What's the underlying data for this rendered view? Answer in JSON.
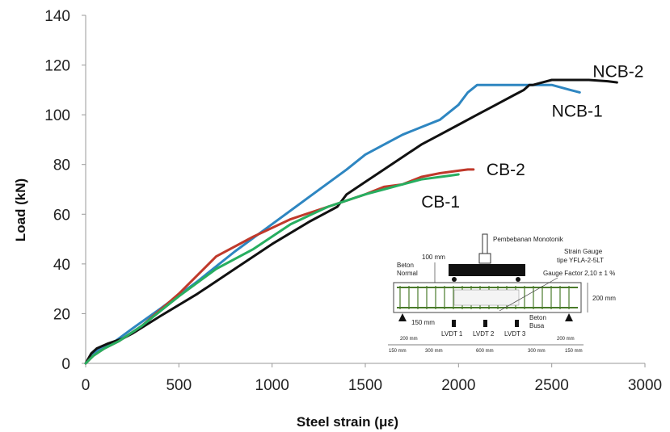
{
  "chart_data": {
    "type": "line",
    "xlabel": "Steel strain (με)",
    "ylabel": "Load (kN)",
    "xlim": [
      0,
      3000
    ],
    "ylim": [
      0,
      140
    ],
    "xticks": [
      0,
      500,
      1000,
      1500,
      2000,
      2500,
      3000
    ],
    "yticks": [
      0,
      20,
      40,
      60,
      80,
      100,
      120,
      140
    ],
    "grid": false,
    "legend": "none",
    "series": [
      {
        "name": "NCB-1",
        "color": "#2e86c1",
        "x": [
          0,
          40,
          100,
          160,
          250,
          400,
          600,
          800,
          1000,
          1200,
          1400,
          1500,
          1600,
          1700,
          1800,
          1900,
          1950,
          2000,
          2050,
          2100,
          2200,
          2300,
          2400,
          2500,
          2550,
          2600,
          2650
        ],
        "y": [
          0,
          4,
          7,
          9,
          14,
          22,
          33,
          45,
          56,
          67,
          78,
          84,
          88,
          92,
          95,
          98,
          101,
          104,
          109,
          112,
          112,
          112,
          112,
          112,
          111,
          110,
          109
        ]
      },
      {
        "name": "NCB-2",
        "color": "#111111",
        "x": [
          0,
          30,
          60,
          120,
          200,
          250,
          400,
          600,
          800,
          1000,
          1200,
          1300,
          1350,
          1400,
          1500,
          1600,
          1700,
          1800,
          1900,
          2000,
          2100,
          2200,
          2300,
          2350,
          2380,
          2400,
          2450,
          2500,
          2600,
          2700,
          2800,
          2850
        ],
        "y": [
          0,
          4,
          6,
          8,
          10,
          12,
          19,
          28,
          38,
          48,
          57,
          61,
          63,
          68,
          73,
          78,
          83,
          88,
          92,
          96,
          100,
          104,
          108,
          110,
          112,
          112,
          113,
          114,
          114,
          114,
          113.5,
          113
        ]
      },
      {
        "name": "CB-2",
        "color": "#c0392b",
        "x": [
          0,
          40,
          100,
          180,
          300,
          500,
          700,
          900,
          1100,
          1300,
          1500,
          1600,
          1700,
          1800,
          1900,
          2000,
          2050,
          2080
        ],
        "y": [
          0,
          3,
          6,
          9,
          15,
          28,
          43,
          51,
          58,
          63,
          68,
          71,
          72,
          75,
          76.5,
          77.5,
          78,
          78
        ]
      },
      {
        "name": "CB-1",
        "color": "#27ae60",
        "x": [
          0,
          40,
          100,
          180,
          300,
          500,
          700,
          900,
          1100,
          1300,
          1500,
          1600,
          1700,
          1800,
          1900,
          1950,
          2000
        ],
        "y": [
          0,
          3,
          6,
          9,
          15,
          27,
          38,
          46,
          56,
          63,
          68,
          70,
          72,
          74,
          75,
          75.5,
          76
        ]
      }
    ],
    "series_labels": [
      {
        "text": "NCB-2",
        "x": 2720,
        "y": 117.5
      },
      {
        "text": "NCB-1",
        "x": 2500,
        "y": 101.5
      },
      {
        "text": "CB-2",
        "x": 2150,
        "y": 78
      },
      {
        "text": "CB-1",
        "x": 1800,
        "y": 65
      }
    ]
  },
  "inset": {
    "loading": "Pembebanan Monotonik",
    "strain_gauge_line1": "Strain Gauge",
    "strain_gauge_line2": "tipe YFLA-2-5LT",
    "gauge_factor": "Gauge Factor 2,10 ± 1 %",
    "dim_100": "100 mm",
    "beton_normal_1": "Beton",
    "beton_normal_2": "Normal",
    "beton_busa_1": "Beton",
    "beton_busa_2": "Busa",
    "dim_200_right": "200 mm",
    "dim_150": "150 mm",
    "lvdt1": "LVDT 1",
    "lvdt2": "LVDT 2",
    "lvdt3": "LVDT 3",
    "dim_200_left_bottom": "200 mm",
    "dim_200_right_bottom": "200 mm",
    "dim_150_left": "150 mm",
    "dim_300_left": "300 mm",
    "dim_600": "600 mm",
    "dim_300_right": "300 mm",
    "dim_150_right": "150 mm"
  }
}
